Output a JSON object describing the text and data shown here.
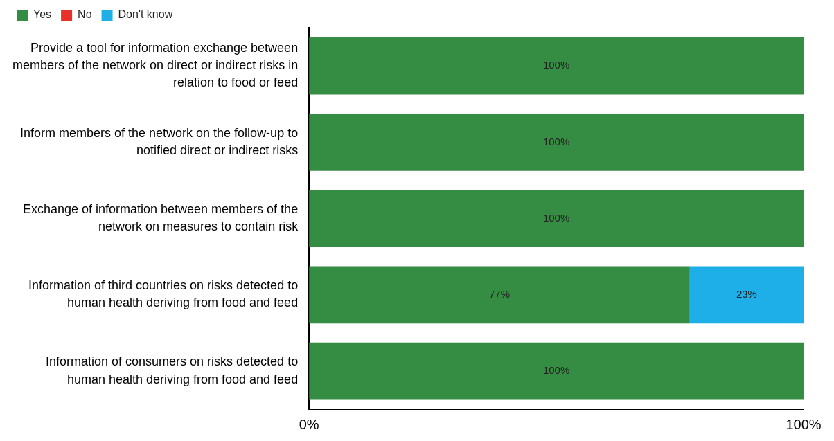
{
  "chart_data": {
    "type": "bar",
    "orientation": "horizontal",
    "stacked": true,
    "legend": "top left",
    "grid": false,
    "categories": [
      "Provide a tool for information exchange between members of the network on direct or indirect risks in relation to food or feed",
      "Inform members of the network on the follow-up to notified direct or indirect risks",
      "Exchange of information between members of the network on measures to contain risk",
      "Information of third countries on risks detected to human health deriving from food and feed",
      "Information of consumers on risks detected to human health deriving from food and feed"
    ],
    "series": [
      {
        "name": "Yes",
        "color": "#358c43",
        "values": [
          100,
          100,
          100,
          77,
          100
        ],
        "value_labels": [
          "100%",
          "100%",
          "100%",
          "77%",
          "100%"
        ]
      },
      {
        "name": "No",
        "color": "#e8302a",
        "values": [
          0,
          0,
          0,
          0,
          0
        ],
        "value_labels": [
          null,
          null,
          null,
          null,
          null
        ]
      },
      {
        "name": "Don't know",
        "color": "#1eaee8",
        "values": [
          0,
          0,
          0,
          23,
          0
        ],
        "value_labels": [
          null,
          null,
          null,
          "23%",
          null
        ]
      }
    ],
    "xlim": [
      0,
      100
    ],
    "xticks": [
      {
        "value": 0,
        "label": "0%"
      },
      {
        "value": 100,
        "label": "100%"
      }
    ]
  }
}
